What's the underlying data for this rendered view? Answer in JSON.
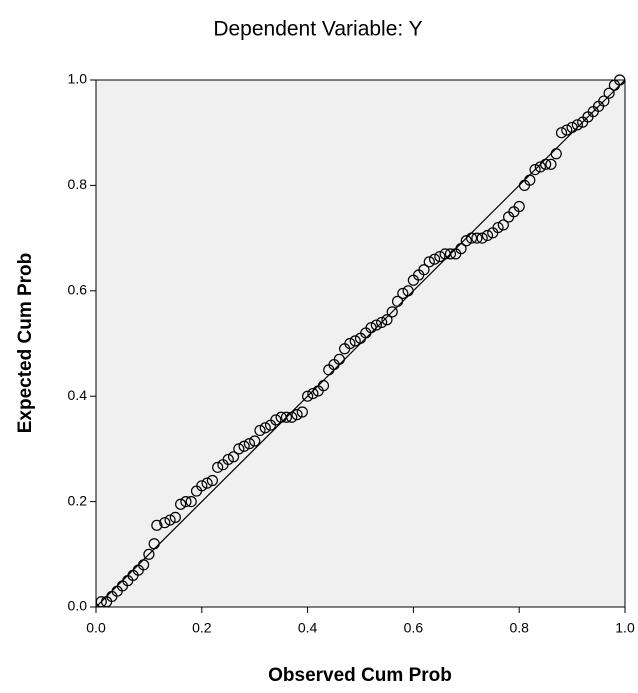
{
  "chart_data": {
    "type": "scatter",
    "title": "Dependent Variable: Y",
    "x_label": "Observed Cum Prob",
    "y_label": "Expected Cum Prob",
    "xlim": [
      0,
      1
    ],
    "ylim": [
      0,
      1
    ],
    "xticks": [
      {
        "value": 0,
        "label": "0.0"
      },
      0.2,
      0.4,
      0.6,
      0.8,
      {
        "value": 1,
        "label": "1.0"
      }
    ],
    "yticks": [
      {
        "value": 0,
        "label": "0.0"
      },
      0.2,
      0.4,
      0.6,
      0.8,
      {
        "value": 1,
        "label": "1.0"
      }
    ],
    "reference_line": true,
    "color": "#000000",
    "x": [
      0.01,
      0.02,
      0.03,
      0.04,
      0.05,
      0.06,
      0.07,
      0.08,
      0.09,
      0.1,
      0.11,
      0.115,
      0.13,
      0.14,
      0.15,
      0.16,
      0.17,
      0.18,
      0.19,
      0.2,
      0.21,
      0.22,
      0.23,
      0.24,
      0.25,
      0.26,
      0.27,
      0.28,
      0.29,
      0.3,
      0.31,
      0.32,
      0.33,
      0.34,
      0.35,
      0.36,
      0.37,
      0.38,
      0.39,
      0.4,
      0.41,
      0.42,
      0.43,
      0.44,
      0.45,
      0.46,
      0.47,
      0.48,
      0.49,
      0.5,
      0.51,
      0.52,
      0.53,
      0.54,
      0.55,
      0.56,
      0.57,
      0.58,
      0.59,
      0.6,
      0.61,
      0.62,
      0.63,
      0.64,
      0.65,
      0.66,
      0.67,
      0.68,
      0.69,
      0.7,
      0.71,
      0.72,
      0.73,
      0.74,
      0.75,
      0.76,
      0.77,
      0.78,
      0.79,
      0.8,
      0.81,
      0.82,
      0.83,
      0.84,
      0.85,
      0.86,
      0.87,
      0.88,
      0.89,
      0.9,
      0.91,
      0.92,
      0.93,
      0.94,
      0.95,
      0.96,
      0.97,
      0.98,
      0.99
    ],
    "values": [
      0.01,
      0.01,
      0.02,
      0.03,
      0.04,
      0.05,
      0.06,
      0.07,
      0.08,
      0.1,
      0.12,
      0.155,
      0.16,
      0.165,
      0.17,
      0.195,
      0.2,
      0.2,
      0.22,
      0.23,
      0.235,
      0.24,
      0.265,
      0.27,
      0.28,
      0.285,
      0.3,
      0.305,
      0.31,
      0.315,
      0.335,
      0.34,
      0.345,
      0.355,
      0.36,
      0.36,
      0.36,
      0.365,
      0.37,
      0.4,
      0.405,
      0.41,
      0.42,
      0.45,
      0.46,
      0.47,
      0.49,
      0.5,
      0.505,
      0.51,
      0.52,
      0.53,
      0.535,
      0.54,
      0.545,
      0.56,
      0.58,
      0.595,
      0.6,
      0.62,
      0.63,
      0.64,
      0.655,
      0.66,
      0.665,
      0.67,
      0.67,
      0.67,
      0.68,
      0.695,
      0.7,
      0.7,
      0.7,
      0.705,
      0.71,
      0.72,
      0.725,
      0.74,
      0.75,
      0.76,
      0.8,
      0.81,
      0.83,
      0.835,
      0.84,
      0.84,
      0.86,
      0.9,
      0.905,
      0.91,
      0.915,
      0.92,
      0.93,
      0.94,
      0.95,
      0.96,
      0.975,
      0.99,
      1.0
    ]
  }
}
